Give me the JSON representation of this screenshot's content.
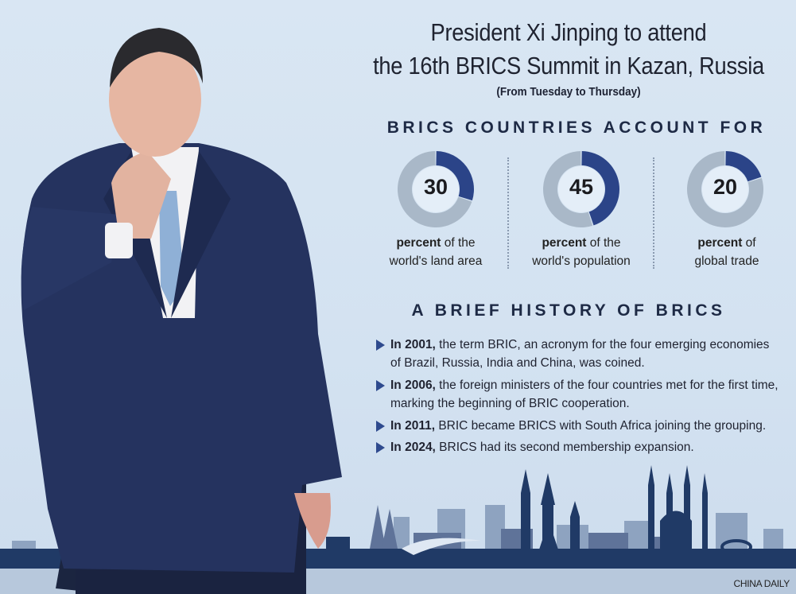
{
  "header": {
    "title_line1": "President Xi Jinping to attend",
    "title_line2": "the 16th BRICS Summit in Kazan, Russia",
    "subtitle": "(From Tuesday to Thursday)"
  },
  "stats": {
    "heading": "BRICS COUNTRIES ACCOUNT FOR",
    "colors": {
      "highlight": "#2b4488",
      "remainder": "#a9b8c8",
      "center": "#e4eef8"
    },
    "items": [
      {
        "value": "30",
        "percent": 30,
        "bold": "percent",
        "rest": " of the",
        "line2": "world's land area"
      },
      {
        "value": "45",
        "percent": 45,
        "bold": "percent",
        "rest": " of the",
        "line2": "world's population"
      },
      {
        "value": "20",
        "percent": 20,
        "bold": "percent",
        "rest": " of",
        "line2": "global trade"
      }
    ]
  },
  "chart_data": {
    "type": "pie",
    "charts": [
      {
        "value": 30,
        "label": "percent of the world's land area"
      },
      {
        "value": 45,
        "label": "percent of the world's population"
      },
      {
        "value": 20,
        "label": "percent of global trade"
      }
    ]
  },
  "history": {
    "heading": "A BRIEF HISTORY OF BRICS",
    "items": [
      {
        "year": "In 2001,",
        "text": " the term BRIC, an acronym for the four emerging economies of Brazil, Russia, India and China, was coined."
      },
      {
        "year": "In 2006,",
        "text": " the foreign ministers of the four countries met for the first time, marking the beginning of BRIC cooperation."
      },
      {
        "year": "In 2011,",
        "text": " BRIC became BRICS with South Africa joining the grouping."
      },
      {
        "year": "In 2024,",
        "text": " BRICS had its second membership expansion."
      }
    ]
  },
  "credit": "CHINA DAILY"
}
